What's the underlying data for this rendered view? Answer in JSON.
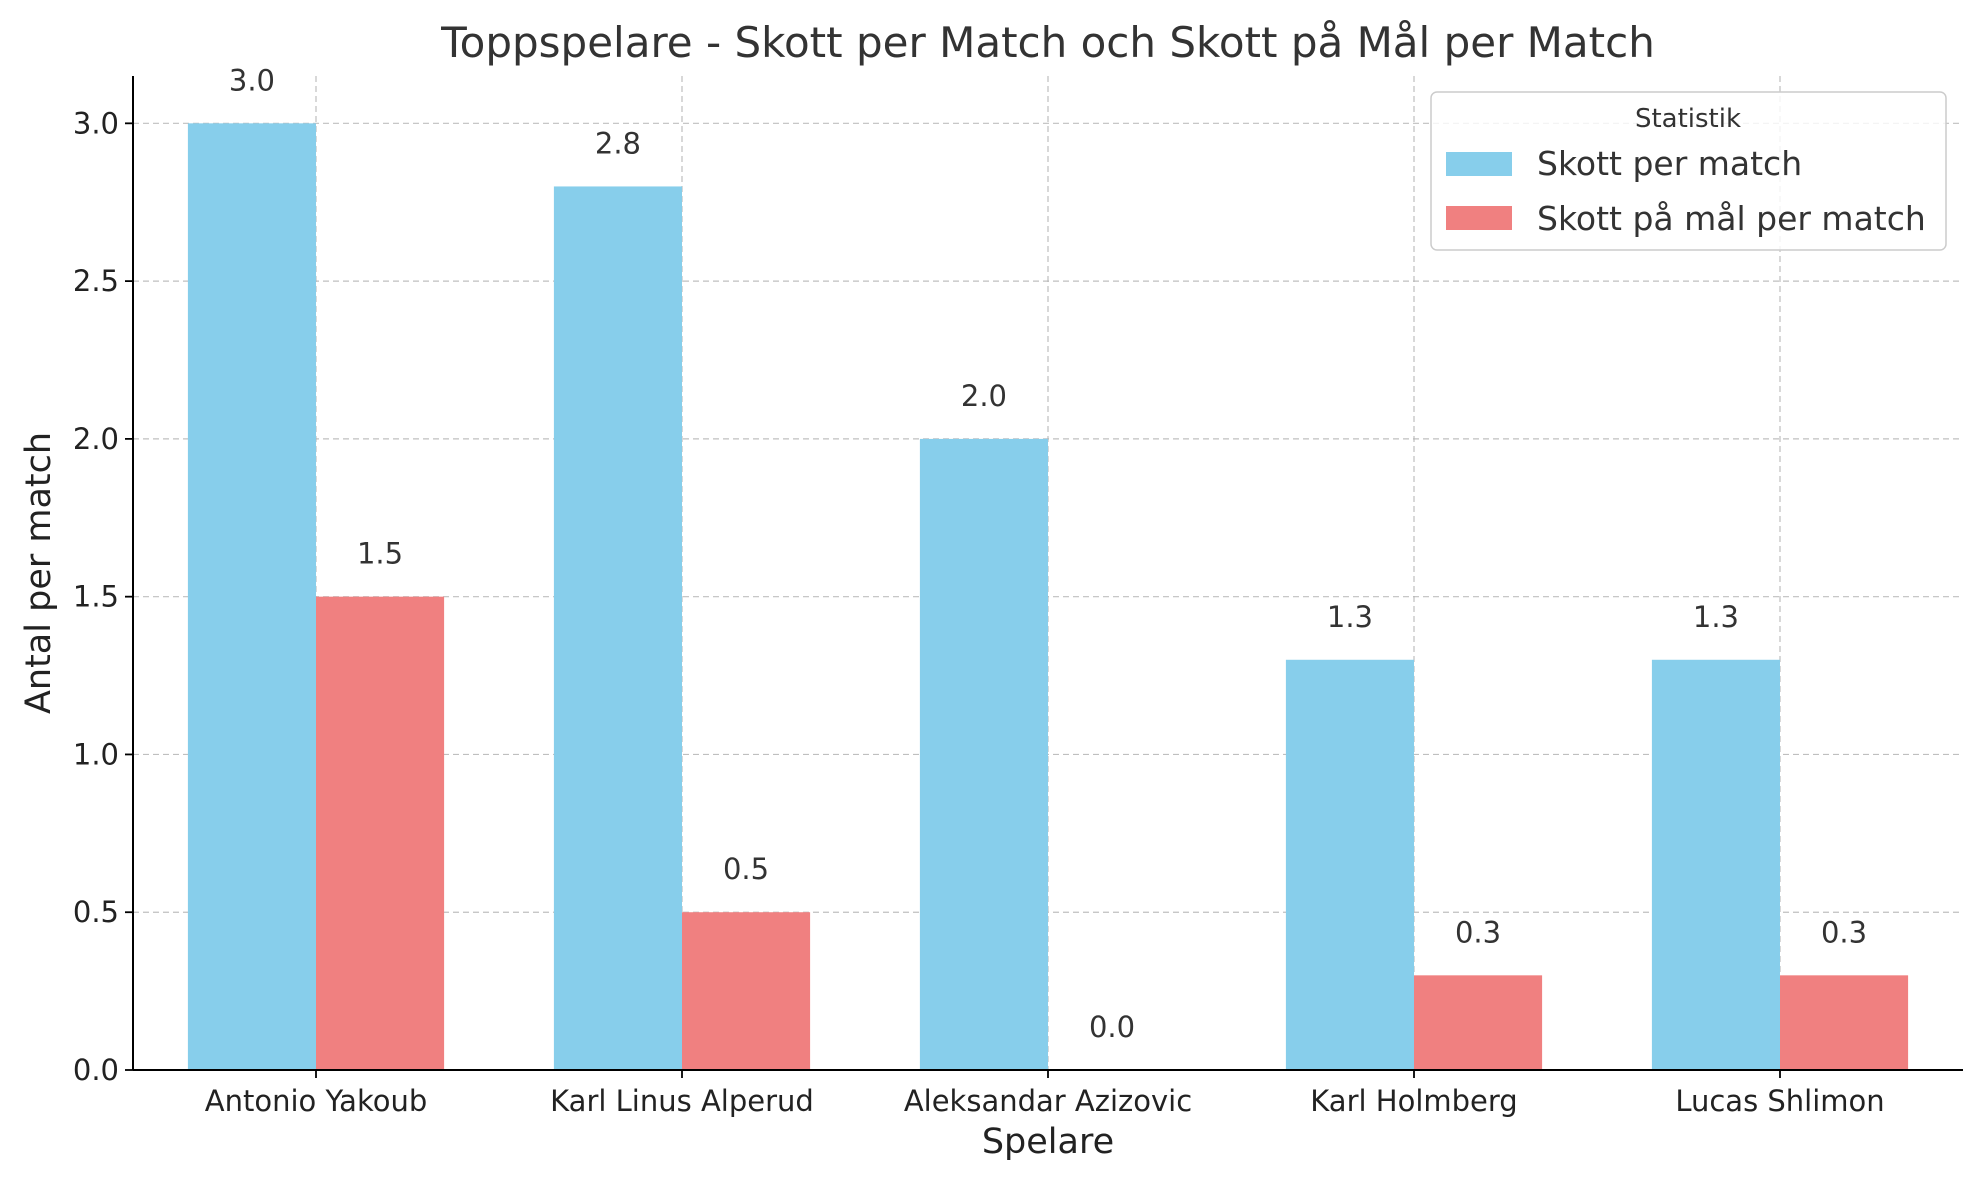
{
  "chart_data": {
    "type": "bar",
    "title": "Toppspelare - Skott per Match och Skott på Mål per Match",
    "xlabel": "Spelare",
    "ylabel": "Antal per match",
    "categories": [
      "Antonio Yakoub",
      "Karl Linus Alperud",
      "Aleksandar Azizovic",
      "Karl Holmberg",
      "Lucas Shlimon"
    ],
    "series": [
      {
        "name": "Skott per match",
        "values": [
          3.0,
          2.8,
          2.0,
          1.3,
          1.3
        ],
        "color": "#87CEEB"
      },
      {
        "name": "Skott på mål per match",
        "values": [
          1.5,
          0.5,
          0.0,
          0.3,
          0.3
        ],
        "color": "#F08080"
      }
    ],
    "data_labels": [
      [
        "3.0",
        "2.8",
        "2.0",
        "1.3",
        "1.3"
      ],
      [
        "1.5",
        "0.5",
        "0.0",
        "0.3",
        "0.3"
      ]
    ],
    "ylim": [
      0,
      3.15
    ],
    "yticks": [
      0.0,
      0.5,
      1.0,
      1.5,
      2.0,
      2.5,
      3.0
    ],
    "ytick_labels": [
      "0.0",
      "0.5",
      "1.0",
      "1.5",
      "2.0",
      "2.5",
      "3.0"
    ],
    "grid": true,
    "legend": {
      "title": "Statistik",
      "position": "top-right"
    }
  }
}
